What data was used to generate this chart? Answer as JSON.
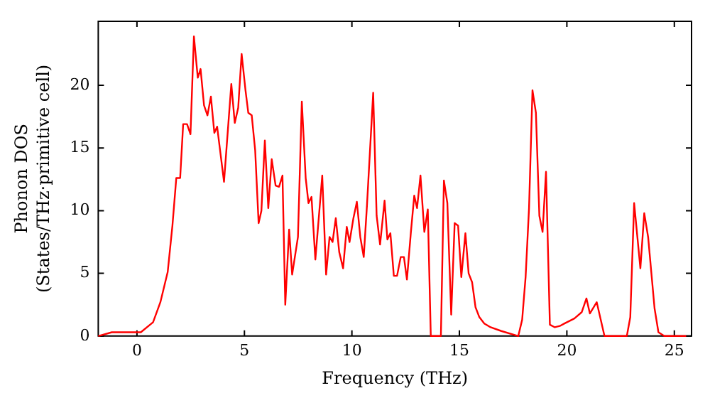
{
  "chart_data": {
    "type": "line",
    "xlabel": "Frequency (THz)",
    "ylabel": "Phonon DOS\n(States/THz·primitive cell)",
    "xlim": [
      -1.8,
      25.8
    ],
    "ylim": [
      0,
      25.1
    ],
    "xticks": [
      0,
      5,
      10,
      15,
      20,
      25
    ],
    "yticks": [
      0,
      5,
      10,
      15,
      20
    ],
    "grid": false,
    "legend": false,
    "marker": "none",
    "line_style": "solid",
    "series": [
      {
        "color": "#ff0000",
        "x": [
          -1.8,
          -1.17,
          -0.5,
          0,
          0.18,
          0.75,
          1.09,
          1.43,
          1.65,
          1.83,
          2.01,
          2.15,
          2.33,
          2.49,
          2.65,
          2.83,
          2.96,
          3.12,
          3.28,
          3.44,
          3.6,
          3.73,
          4.05,
          4.39,
          4.55,
          4.71,
          4.87,
          5.05,
          5.18,
          5.34,
          5.5,
          5.66,
          5.79,
          5.95,
          6.11,
          6.27,
          6.45,
          6.61,
          6.77,
          6.9,
          7.08,
          7.22,
          7.49,
          7.67,
          7.85,
          7.98,
          8.12,
          8.3,
          8.62,
          8.8,
          8.96,
          9.1,
          9.25,
          9.41,
          9.59,
          9.76,
          9.89,
          10.07,
          10.23,
          10.39,
          10.55,
          10.7,
          10.99,
          11.15,
          11.31,
          11.52,
          11.65,
          11.79,
          11.95,
          12.1,
          12.27,
          12.42,
          12.56,
          12.74,
          12.9,
          13.03,
          13.19,
          13.37,
          13.53,
          13.67,
          14.14,
          14.28,
          14.44,
          14.62,
          14.78,
          14.94,
          15.09,
          15.28,
          15.43,
          15.59,
          15.75,
          15.93,
          16.16,
          16.45,
          16.95,
          17.74,
          17.92,
          18.08,
          18.24,
          18.4,
          18.56,
          18.72,
          18.87,
          19.03,
          19.21,
          19.44,
          19.67,
          19.89,
          20.35,
          20.69,
          20.91,
          21.07,
          21.39,
          21.75,
          22.79,
          22.95,
          23.13,
          23.42,
          23.6,
          23.78,
          24.08,
          24.26,
          24.53,
          25.55
        ],
        "values": [
          0,
          0.3,
          0.3,
          0.3,
          0.3,
          1.1,
          2.7,
          5.1,
          8.8,
          12.6,
          12.6,
          16.9,
          16.9,
          16.1,
          23.9,
          20.6,
          21.3,
          18.4,
          17.6,
          19.1,
          16.2,
          16.7,
          12.3,
          20.1,
          17,
          18.2,
          22.5,
          19.6,
          17.8,
          17.6,
          14.8,
          9,
          10,
          15.6,
          10.2,
          14.1,
          12,
          11.9,
          12.8,
          2.5,
          8.5,
          4.9,
          7.9,
          18.7,
          12.6,
          10.6,
          11.1,
          6.1,
          12.8,
          4.9,
          7.9,
          7.5,
          9.4,
          6.7,
          5.4,
          8.7,
          7.5,
          9.4,
          10.7,
          7.9,
          6.3,
          10.4,
          19.4,
          9.6,
          7.3,
          10.8,
          7.7,
          8.2,
          4.8,
          4.8,
          6.3,
          6.3,
          4.5,
          8.2,
          11.2,
          10.2,
          12.8,
          8.3,
          10.1,
          0,
          0,
          12.4,
          10.6,
          1.7,
          9,
          8.8,
          4.7,
          8.2,
          5,
          4.3,
          2.3,
          1.5,
          1,
          0.7,
          0.4,
          0,
          1.3,
          4.7,
          10.2,
          19.6,
          17.8,
          9.6,
          8.3,
          13.1,
          0.9,
          0.7,
          0.8,
          1,
          1.4,
          1.9,
          3,
          1.8,
          2.7,
          0,
          0,
          1.5,
          10.6,
          5.4,
          9.8,
          7.9,
          2.2,
          0.3,
          0,
          0
        ]
      }
    ]
  }
}
